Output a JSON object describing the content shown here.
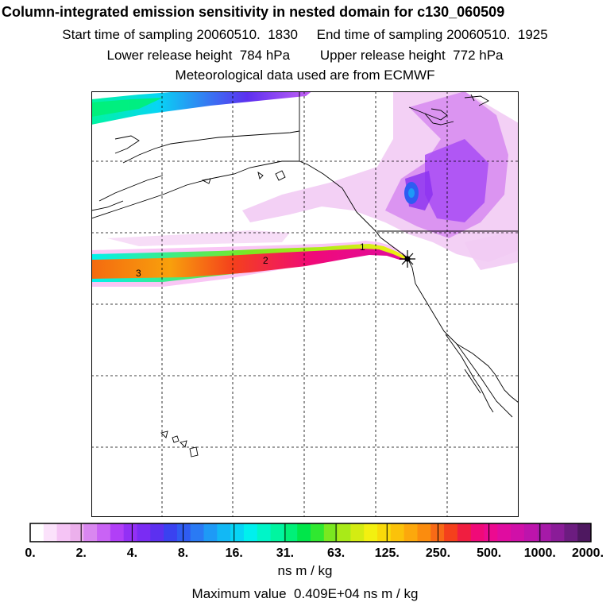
{
  "header": {
    "title": "Column-integrated emission sensitivity in nested domain for c130_060509",
    "line_sampling": "Start time of sampling 20060510.  1830     End time of sampling 20060510.  1925",
    "line_release": "Lower release height  784 hPa        Upper release height  772 hPa",
    "line_met": "Meteorological data used are from ECMWF"
  },
  "map": {
    "plume_labels": [
      "1",
      "2",
      "3"
    ],
    "release_marker": "release-site-star"
  },
  "legend": {
    "tick_labels": [
      "0.",
      "2.",
      "4.",
      "8.",
      "16.",
      "31.",
      "63.",
      "125.",
      "250.",
      "500.",
      "1000.",
      "2000."
    ],
    "colors": [
      "#ffffff",
      "#fbe2fb",
      "#f5c4f5",
      "#ecb0ec",
      "#d987f0",
      "#c963f5",
      "#b13ff7",
      "#9330f5",
      "#7a2cf3",
      "#5c30f0",
      "#3a42f0",
      "#2f5cf2",
      "#2a7af4",
      "#1e9af6",
      "#12b8f5",
      "#07d5f5",
      "#00f0ee",
      "#00f5c8",
      "#00f5a0",
      "#00f078",
      "#00e64a",
      "#30e830",
      "#7ae820",
      "#a9ea18",
      "#d4ec12",
      "#f3f010",
      "#f9da0a",
      "#fbc20a",
      "#fca80c",
      "#fb8c0e",
      "#f86a16",
      "#f4401c",
      "#f01e40",
      "#f00a78",
      "#ec0a90",
      "#e00ca0",
      "#d010a8",
      "#bd14ac",
      "#a61aa8",
      "#8a1c98",
      "#6c1c80",
      "#4e1860"
    ],
    "units": "ns m / kg",
    "max_value_text": "Maximum value  0.409E+04 ns m / kg"
  }
}
